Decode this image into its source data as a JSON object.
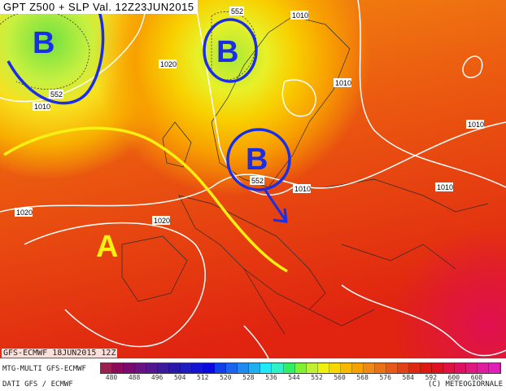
{
  "title": "GPT Z500 + SLP Val. 12Z23JUN2015",
  "run": "GFS-ECMWF 18JUN2015 12Z",
  "model": "MTG-MULTI GFS-ECMWF",
  "source": "DATI GFS / ECMWF",
  "credit": "(C) METEOGIORNALE",
  "annotations": {
    "low1": "B",
    "low2": "B",
    "low3": "B",
    "high": "A"
  },
  "contour_labels": [
    "1010",
    "1010",
    "1020",
    "552",
    "552",
    "1010",
    "1010",
    "1010",
    "1020",
    "1020",
    "1010",
    "552"
  ],
  "legend": {
    "ticks": [
      "480",
      "488",
      "496",
      "504",
      "512",
      "520",
      "528",
      "536",
      "544",
      "552",
      "560",
      "568",
      "576",
      "584",
      "592",
      "600",
      "608"
    ],
    "colors": [
      "#9a2050",
      "#8c0a5a",
      "#7a0a6e",
      "#6a1282",
      "#52168e",
      "#3c1a9a",
      "#2a18a6",
      "#1e1ebe",
      "#1414d2",
      "#0a0ae0",
      "#1040e8",
      "#1c64f0",
      "#208af0",
      "#20b0f0",
      "#20e8f8",
      "#30f0c8",
      "#30f060",
      "#80f030",
      "#c0f030",
      "#f0f010",
      "#f8d800",
      "#f8b800",
      "#f8a000",
      "#f08818",
      "#ec7018",
      "#e85818",
      "#e44018",
      "#e02810",
      "#dc1810",
      "#e01020",
      "#e01040",
      "#e01060",
      "#e01880",
      "#e01ca0",
      "#e020b8"
    ]
  }
}
